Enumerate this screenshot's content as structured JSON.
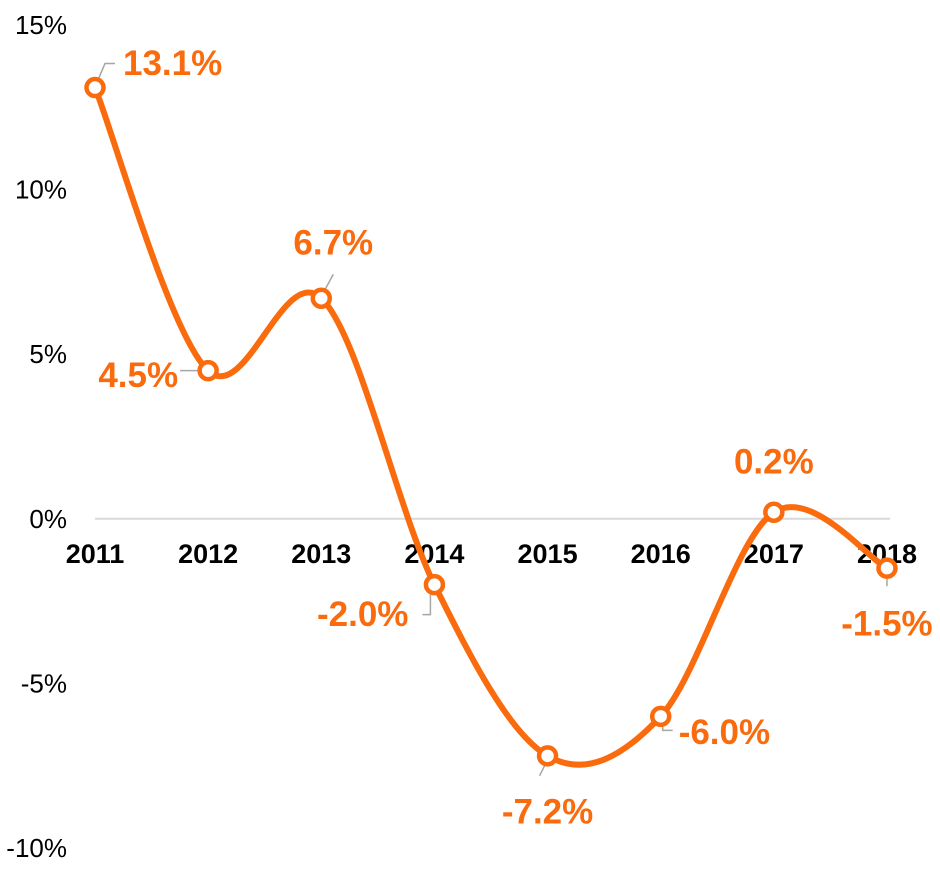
{
  "chart_data": {
    "type": "line",
    "title": "",
    "xlabel": "",
    "ylabel": "",
    "categories": [
      "2011",
      "2012",
      "2013",
      "2014",
      "2015",
      "2016",
      "2017",
      "2018"
    ],
    "series": [
      {
        "values": [
          13.1,
          4.5,
          6.7,
          -2.0,
          -7.2,
          -6.0,
          0.2,
          -1.5
        ],
        "data_labels": [
          "13.1%",
          "4.5%",
          "6.7%",
          "-2.0%",
          "-7.2%",
          "-6.0%",
          "0.2%",
          "-1.5%"
        ],
        "color": "#F96B0C",
        "smooth": true,
        "markers": "hollow-circle"
      }
    ],
    "ylim": [
      -10,
      15
    ],
    "yticks": [
      15,
      10,
      5,
      0,
      -5,
      -10
    ],
    "ytick_labels": [
      "15%",
      "10%",
      "5%",
      "0%",
      "-5%",
      "-10%"
    ],
    "grid": false,
    "legend": "none",
    "zero_line_color": "#D9D9D9",
    "leader_line_color": "#A6A6A6"
  }
}
